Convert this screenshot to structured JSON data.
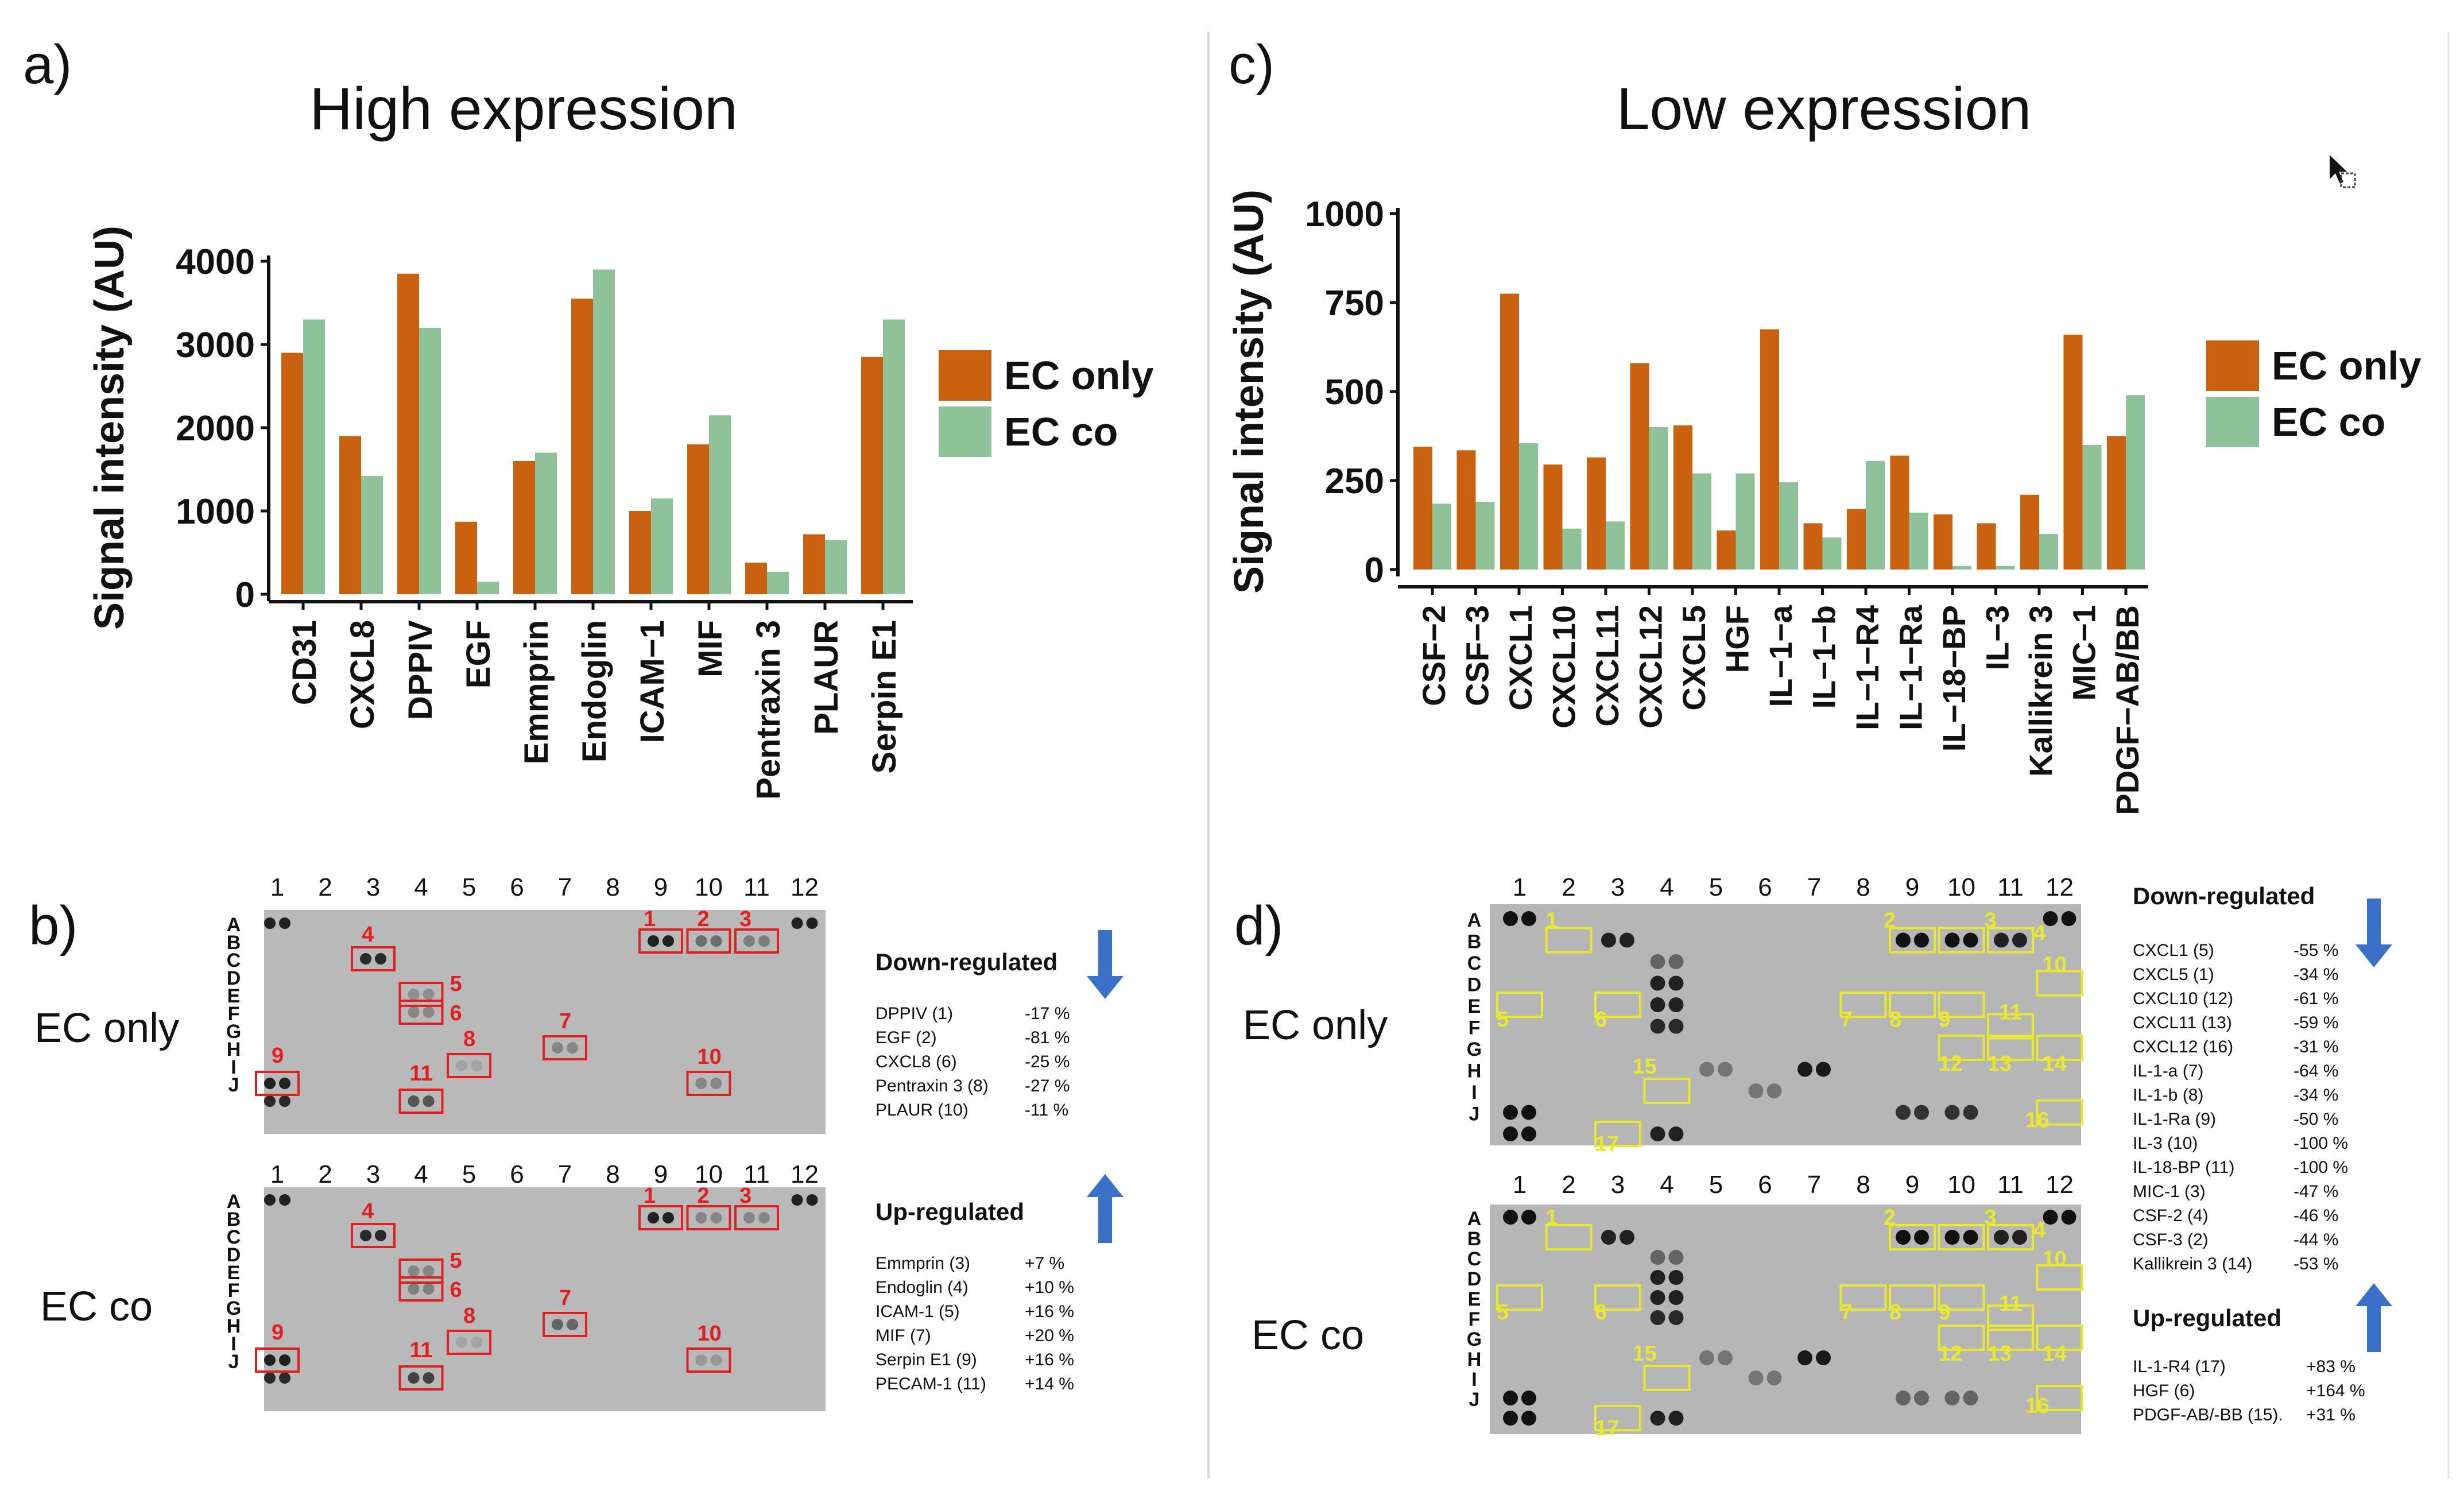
{
  "colors": {
    "ec_only": "#C8620E",
    "ec_co": "#8EC39A",
    "membrane_bg": "#b8b8b8",
    "box_red": "#e02020",
    "box_yellow": "#e8e830",
    "arrow_blue": "#3a70c8"
  },
  "panels": {
    "a": {
      "label": "a)",
      "title": "High expression"
    },
    "b": {
      "label": "b)"
    },
    "c": {
      "label": "c)",
      "title": "Low expression"
    },
    "d": {
      "label": "d)"
    }
  },
  "chart_data": [
    {
      "type": "bar",
      "panel": "a",
      "title": "High expression",
      "ylabel": "Signal intensity (AU)",
      "xlabel": "",
      "ylim": [
        0,
        4000
      ],
      "yticks": [
        "0",
        "1000",
        "2000",
        "3000",
        "4000"
      ],
      "categories": [
        "CD31",
        "CXCL8",
        "DPPIV",
        "EGF",
        "Emmprin",
        "Endoglin",
        "ICAM−1",
        "MIF",
        "Pentraxin 3",
        "PLAUR",
        "Serpin E1"
      ],
      "series": [
        {
          "name": "EC only",
          "values": [
            2900,
            1900,
            3850,
            870,
            1600,
            3550,
            1000,
            1800,
            380,
            720,
            2850
          ]
        },
        {
          "name": "EC co",
          "values": [
            3300,
            1420,
            3200,
            150,
            1700,
            3900,
            1150,
            2150,
            270,
            650,
            3300
          ]
        }
      ],
      "legend": [
        "EC only",
        "EC co"
      ]
    },
    {
      "type": "bar",
      "panel": "c",
      "title": "Low expression",
      "ylabel": "Signal intensity (AU)",
      "xlabel": "",
      "ylim": [
        0,
        1000
      ],
      "yticks": [
        "0",
        "250",
        "500",
        "750",
        "1000"
      ],
      "categories": [
        "CSF−2",
        "CSF−3",
        "CXCL1",
        "CXCL10",
        "CXCL11",
        "CXCL12",
        "CXCL5",
        "HGF",
        "IL−1−a",
        "IL−1−b",
        "IL−1−R4",
        "IL−1−Ra",
        "IL−18−BP",
        "IL−3",
        "Kallikrein 3",
        "MIC−1",
        "PDGF−AB/BB"
      ],
      "series": [
        {
          "name": "EC only",
          "values": [
            345,
            335,
            775,
            295,
            315,
            580,
            405,
            110,
            675,
            130,
            170,
            320,
            155,
            130,
            210,
            660,
            375
          ]
        },
        {
          "name": "EC co",
          "values": [
            185,
            190,
            355,
            115,
            135,
            400,
            270,
            270,
            245,
            90,
            305,
            160,
            10,
            10,
            100,
            350,
            490
          ]
        }
      ],
      "legend": [
        "EC only",
        "EC co"
      ]
    }
  ],
  "arrays": {
    "columns": [
      "1",
      "2",
      "3",
      "4",
      "5",
      "6",
      "7",
      "8",
      "9",
      "10",
      "11",
      "12"
    ],
    "rows_b": [
      "A",
      "B",
      "C",
      "D",
      "E",
      "F",
      "G",
      "H",
      "I",
      "J"
    ],
    "rows_d": [
      "A",
      "B",
      "C",
      "D",
      "E",
      "F",
      "G",
      "H",
      "I",
      "J"
    ],
    "b_row_labels": [
      "EC only",
      "EC co"
    ],
    "d_row_labels": [
      "EC only",
      "EC co"
    ],
    "b_box_numbers": [
      "1",
      "2",
      "3",
      "4",
      "5",
      "6",
      "7",
      "8",
      "9",
      "10",
      "11"
    ],
    "d_box_numbers": [
      "1",
      "2",
      "3",
      "4",
      "5",
      "6",
      "7",
      "8",
      "9",
      "10",
      "11",
      "12",
      "13",
      "14",
      "15",
      "16",
      "17"
    ]
  },
  "tables": {
    "b_down": {
      "heading": "Down-regulated",
      "rows": [
        {
          "name": "DPPIV (1)",
          "pct": "-17 %"
        },
        {
          "name": "EGF (2)",
          "pct": "-81 %"
        },
        {
          "name": "CXCL8 (6)",
          "pct": "-25 %"
        },
        {
          "name": "Pentraxin 3 (8)",
          "pct": "-27 %"
        },
        {
          "name": "PLAUR (10)",
          "pct": "-11 %"
        }
      ]
    },
    "b_up": {
      "heading": "Up-regulated",
      "rows": [
        {
          "name": "Emmprin (3)",
          "pct": "+7 %"
        },
        {
          "name": "Endoglin (4)",
          "pct": "+10 %"
        },
        {
          "name": "ICAM-1 (5)",
          "pct": "+16 %"
        },
        {
          "name": "MIF (7)",
          "pct": "+20 %"
        },
        {
          "name": "Serpin E1 (9)",
          "pct": "+16 %"
        },
        {
          "name": "PECAM-1 (11)",
          "pct": "+14 %"
        }
      ]
    },
    "d_down": {
      "heading": "Down-regulated",
      "rows": [
        {
          "name": "CXCL1 (5)",
          "pct": "-55 %"
        },
        {
          "name": "CXCL5 (1)",
          "pct": "-34 %"
        },
        {
          "name": "CXCL10 (12)",
          "pct": "-61 %"
        },
        {
          "name": "CXCL11 (13)",
          "pct": "-59 %"
        },
        {
          "name": "CXCL12 (16)",
          "pct": "-31 %"
        },
        {
          "name": "IL-1-a (7)",
          "pct": "-64 %"
        },
        {
          "name": "IL-1-b (8)",
          "pct": "-34 %"
        },
        {
          "name": "IL-1-Ra (9)",
          "pct": "-50 %"
        },
        {
          "name": "IL-3 (10)",
          "pct": "-100 %"
        },
        {
          "name": "IL-18-BP (11)",
          "pct": "-100 %"
        },
        {
          "name": "MIC-1 (3)",
          "pct": "-47 %"
        },
        {
          "name": "CSF-2 (4)",
          "pct": "-46 %"
        },
        {
          "name": "CSF-3 (2)",
          "pct": "-44 %"
        },
        {
          "name": "Kallikrein 3 (14)",
          "pct": "-53 %"
        }
      ]
    },
    "d_up": {
      "heading": "Up-regulated",
      "rows": [
        {
          "name": "IL-1-R4 (17)",
          "pct": "+83 %"
        },
        {
          "name": "HGF (6)",
          "pct": "+164 %"
        },
        {
          "name": "PDGF-AB/-BB (15).",
          "pct": "+31 %"
        }
      ]
    }
  }
}
